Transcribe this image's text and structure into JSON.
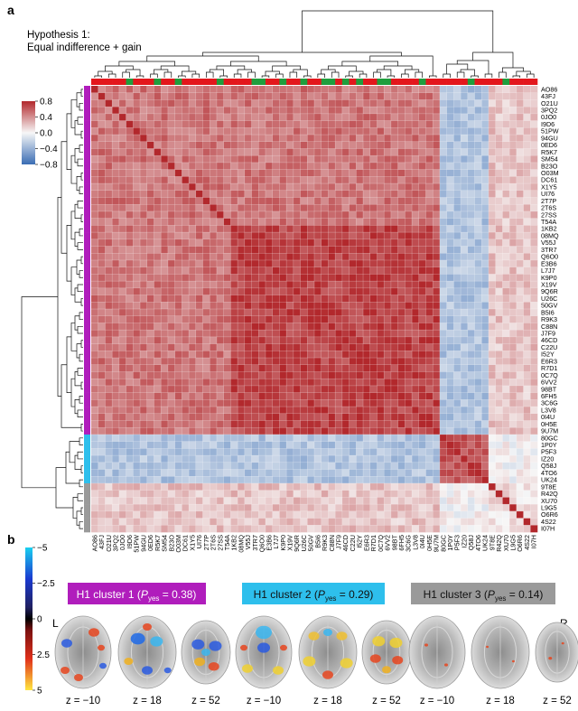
{
  "panel_a": {
    "letter": "a",
    "title_line1": "Hypothesis 1:",
    "title_line2": "Equal indifference + gain",
    "colorbar_ticks": [
      "0.8",
      "0.4",
      "0.0",
      "−0.4",
      "−0.8"
    ]
  },
  "panel_b": {
    "letter": "b",
    "left_label": "L",
    "right_label": "R",
    "colorbar_ticks": [
      "−5",
      "−2.5",
      "0",
      "2.5",
      "5"
    ],
    "clusters": [
      {
        "prefix": "H1 cluster 1 (",
        "p": "P",
        "sub": "yes",
        "suffix": " = 0.38)",
        "color": "#b01dbc",
        "text_color": "#ffffff"
      },
      {
        "prefix": "H1 cluster 2 (",
        "p": "P",
        "sub": "yes",
        "suffix": " = 0.29)",
        "color": "#2ebfec",
        "text_color": "#111111"
      },
      {
        "prefix": "H1 cluster 3 (",
        "p": "P",
        "sub": "yes",
        "suffix": " = 0.14)",
        "color": "#9a9a9a",
        "text_color": "#111111"
      }
    ],
    "slice_labels": [
      "z = −10",
      "z = 18",
      "z = 52",
      "z = −10",
      "z = 18",
      "z = 52",
      "z = −10",
      "z = 18",
      "z = 52"
    ]
  },
  "chart_data": [
    {
      "type": "heatmap",
      "title": "Hypothesis 1: Equal indifference + gain",
      "row_labels": [
        "AO86",
        "43FJ",
        "O21U",
        "3PQ2",
        "0JO0",
        "I9D6",
        "51PW",
        "94GU",
        "0ED6",
        "R5K7",
        "SM54",
        "B23O",
        "O03M",
        "DC61",
        "X1Y5",
        "UI76",
        "2T7P",
        "2T6S",
        "27SS",
        "T54A",
        "1KB2",
        "08MQ",
        "V55J",
        "3TR7",
        "Q6O0",
        "E3B6",
        "L7J7",
        "K9P0",
        "X19V",
        "9Q6R",
        "U26C",
        "50GV",
        "B5I6",
        "R9K3",
        "C88N",
        "J7F9",
        "46CD",
        "C22U",
        "I52Y",
        "E6R3",
        "R7D1",
        "0C7Q",
        "6VV2",
        "98BT",
        "6FH5",
        "3C6G",
        "L3V8",
        "0I4U",
        "0H5E",
        "9U7M",
        "80GC",
        "1P0Y",
        "P5F3",
        "IZ20",
        "Q58J",
        "4TO6",
        "UK24",
        "9T8E",
        "R42Q",
        "XU70",
        "L9G5",
        "O6R6",
        "4S22",
        "I07H"
      ],
      "column_labels": [
        "AO86",
        "43FJ",
        "O21U",
        "3PQ2",
        "0JO0",
        "I9D6",
        "51PW",
        "94GU",
        "0ED6",
        "R5K7",
        "SM54",
        "B23O",
        "O03M",
        "DC61",
        "X1Y5",
        "UI76",
        "2T7P",
        "2T6S",
        "27SS",
        "T54A",
        "1KB2",
        "08MQ",
        "V55J",
        "3TR7",
        "Q6O0",
        "E3B6",
        "L7J7",
        "K9P0",
        "X19V",
        "9Q6R",
        "U26C",
        "50GV",
        "B5I6",
        "R9K3",
        "C88N",
        "J7F9",
        "46CD",
        "C22U",
        "I52Y",
        "E6R3",
        "R7D1",
        "0C7Q",
        "6VV2",
        "98BT",
        "6FH5",
        "3C6G",
        "L3V8",
        "0I4U",
        "0H5E",
        "9U7M",
        "80GC",
        "1P0Y",
        "P5F3",
        "IZ20",
        "Q58J",
        "4TO6",
        "UK24",
        "9T8E",
        "R42Q",
        "XU70",
        "L9G5",
        "O6R6",
        "4S22",
        "I07H"
      ],
      "colorbar": {
        "min": -0.8,
        "max": 0.8,
        "low_color": "#3a6db4",
        "mid_color": "#f7f7f7",
        "high_color": "#b2282c"
      },
      "clusters": [
        {
          "name": "H1 cluster 1",
          "start": 0,
          "end": 49,
          "color": "#b01dbc"
        },
        {
          "name": "H1 cluster 2",
          "start": 50,
          "end": 56,
          "color": "#2ebfec"
        },
        {
          "name": "H1 cluster 3",
          "start": 57,
          "end": 63,
          "color": "#9a9a9a"
        }
      ],
      "block_correlation": {
        "within_1": 0.5,
        "within_1_core": 0.7,
        "within_2": 0.65,
        "within_3": 0.1,
        "between_1_2": -0.3,
        "between_1_3": 0.2,
        "between_2_3": 0.0,
        "diagonal": 1.0
      },
      "top_strip_colors": {
        "red": "#e3171c",
        "green": "#1f9e3d"
      },
      "top_strip_green_indices": [
        5,
        9,
        12,
        18,
        23,
        24,
        27,
        30,
        33,
        34,
        36,
        38,
        41,
        42,
        47,
        54,
        59
      ]
    },
    {
      "type": "image",
      "description_units": "z-statistic",
      "colorbar": {
        "min": -5,
        "max": 5,
        "ticks": [
          -5,
          -2.5,
          0,
          2.5,
          5
        ]
      }
    }
  ]
}
